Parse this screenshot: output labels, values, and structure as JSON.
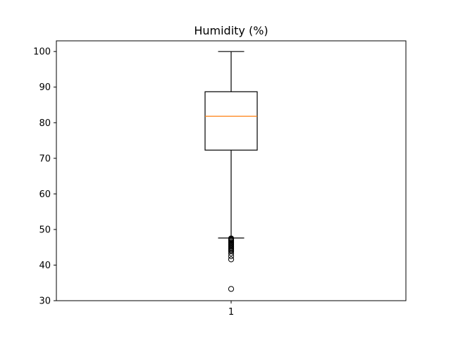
{
  "chart_data": {
    "type": "boxplot",
    "title": "Humidity (%)",
    "xlabel": "",
    "ylabel": "",
    "ylim": [
      30,
      103
    ],
    "yticks": [
      30,
      40,
      50,
      60,
      70,
      80,
      90,
      100
    ],
    "categories": [
      "1"
    ],
    "boxes": [
      {
        "label": "1",
        "whisker_low": 47.6,
        "q1": 72.3,
        "median": 81.8,
        "q3": 88.7,
        "whisker_high": 100,
        "outliers": [
          47.5,
          47.3,
          47.1,
          46.9,
          46.6,
          46.3,
          46.0,
          45.7,
          45.4,
          45.1,
          44.8,
          44.5,
          44.2,
          43.9,
          43.3,
          42.5,
          41.6,
          33.3
        ]
      }
    ],
    "grid": false,
    "colors": {
      "box": "#000000",
      "median": "#ff7f0e",
      "whisker": "#000000",
      "flier": "#000000"
    }
  }
}
